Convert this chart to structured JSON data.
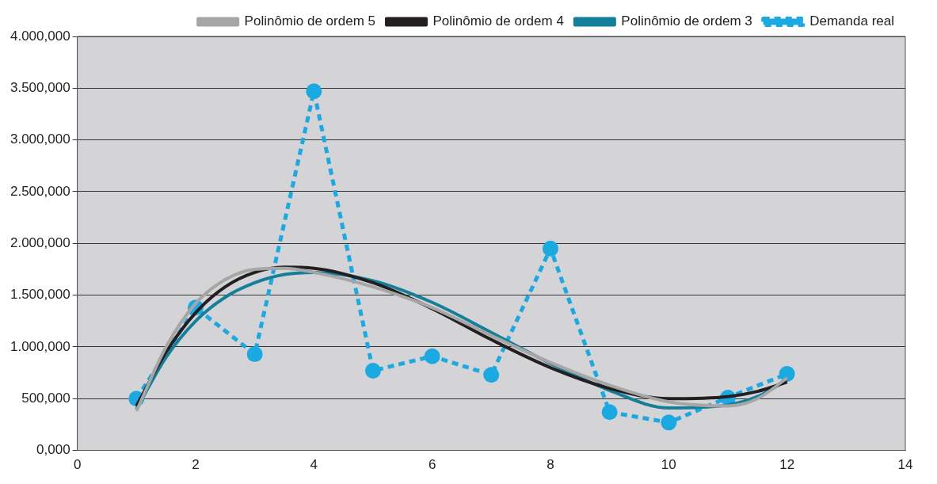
{
  "chart_data": {
    "type": "line",
    "legend": "top right",
    "grid": "y",
    "xlim": [
      0,
      14
    ],
    "xticks": [
      0,
      2,
      4,
      6,
      8,
      10,
      12,
      14
    ],
    "ylim": [
      0,
      4000
    ],
    "yticks": [
      {
        "value": 0,
        "label": "0,000"
      },
      {
        "value": 500,
        "label": "500,000"
      },
      {
        "value": 1000,
        "label": "1.000,000"
      },
      {
        "value": 1500,
        "label": "1.500,000"
      },
      {
        "value": 2000,
        "label": "2.000,000"
      },
      {
        "value": 2500,
        "label": "2.500,000"
      },
      {
        "value": 3000,
        "label": "3.000,000"
      },
      {
        "value": 3500,
        "label": "3.500,000"
      },
      {
        "value": 4000,
        "label": "4.000,000"
      }
    ],
    "series": [
      {
        "name": "Demanda real",
        "color": "#1ba9e1",
        "line_style": "dashed",
        "marker": "circle",
        "x": [
          1,
          2,
          3,
          4,
          5,
          6,
          7,
          8,
          9,
          10,
          11,
          12
        ],
        "values": [
          500,
          1380,
          930,
          3470,
          770,
          910,
          730,
          1950,
          370,
          270,
          510,
          740
        ]
      },
      {
        "name": "Polinômio de ordem 3",
        "color": "#137f99",
        "line_style": "solid",
        "marker": "none",
        "x": [
          1,
          1.5,
          2,
          2.5,
          3,
          3.5,
          4,
          5,
          6,
          7,
          8,
          9,
          10,
          11,
          11.5,
          12
        ],
        "values": [
          400,
          900,
          1250,
          1480,
          1620,
          1700,
          1720,
          1640,
          1430,
          1140,
          840,
          580,
          410,
          440,
          520,
          680
        ]
      },
      {
        "name": "Polinômio de ordem 4",
        "color": "#231f20",
        "line_style": "solid",
        "marker": "none",
        "x": [
          1,
          1.5,
          2,
          2.5,
          3,
          3.5,
          4,
          5,
          6,
          7,
          8,
          9,
          10,
          11,
          11.5,
          12
        ],
        "values": [
          430,
          950,
          1330,
          1580,
          1720,
          1770,
          1760,
          1620,
          1370,
          1070,
          800,
          600,
          500,
          520,
          570,
          660
        ]
      },
      {
        "name": "Polinômio de ordem 5",
        "color": "#a6a6a6",
        "line_style": "solid",
        "marker": "none",
        "x": [
          1,
          1.5,
          2,
          2.5,
          3,
          3.5,
          4,
          5,
          6,
          7,
          8,
          9,
          10,
          11,
          11.5,
          12
        ],
        "values": [
          380,
          1000,
          1420,
          1650,
          1750,
          1760,
          1720,
          1580,
          1380,
          1110,
          850,
          630,
          470,
          430,
          500,
          700
        ]
      }
    ]
  }
}
